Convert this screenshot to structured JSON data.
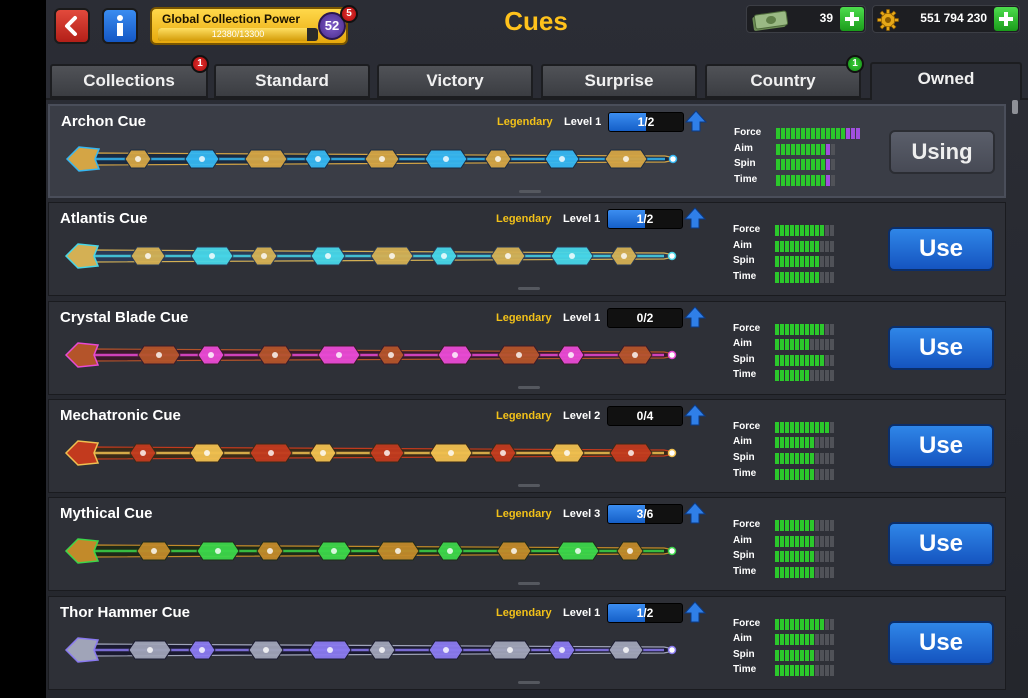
{
  "header": {
    "title": "Cues",
    "collection_power": {
      "title": "Global Collection Power",
      "progress_text": "12380/13300",
      "progress": 0.93,
      "level": "52",
      "badge": "5"
    },
    "cash": "39",
    "coins": "551 794 230",
    "back_icon": "back-arrow-icon",
    "info_icon": "info-icon"
  },
  "tabs": [
    {
      "label": "Collections",
      "badge": "1"
    },
    {
      "label": "Standard"
    },
    {
      "label": "Victory"
    },
    {
      "label": "Surprise"
    },
    {
      "label": "Country",
      "badge": "1"
    },
    {
      "label": "Owned",
      "active": true
    }
  ],
  "stat_labels": [
    "Force",
    "Aim",
    "Spin",
    "Time"
  ],
  "cues": [
    {
      "name": "Archon Cue",
      "rarity": "Legendary",
      "level": "Level 1",
      "progress": "1/2",
      "fill": 0.5,
      "stats": {
        "force": [
          14,
          3
        ],
        "aim": [
          10,
          1
        ],
        "spin": [
          10,
          1
        ],
        "time": [
          10,
          1
        ]
      },
      "button": "Using",
      "selected": true,
      "colors": [
        "#35b7f2",
        "#d4a545",
        "#1a2a40"
      ]
    },
    {
      "name": "Atlantis Cue",
      "rarity": "Legendary",
      "level": "Level 1",
      "progress": "1/2",
      "fill": 0.5,
      "stats": {
        "force": [
          10,
          0
        ],
        "aim": [
          9,
          0
        ],
        "spin": [
          9,
          0
        ],
        "time": [
          9,
          0
        ]
      },
      "button": "Use",
      "colors": [
        "#47d6e8",
        "#d4b054",
        "#2a3a55"
      ]
    },
    {
      "name": "Crystal Blade Cue",
      "rarity": "Legendary",
      "level": "Level 1",
      "progress": "0/2",
      "fill": 0,
      "stats": {
        "force": [
          10,
          0
        ],
        "aim": [
          7,
          0
        ],
        "spin": [
          10,
          0
        ],
        "time": [
          7,
          0
        ]
      },
      "button": "Use",
      "colors": [
        "#e94ad4",
        "#b4542a",
        "#3a1a2a"
      ]
    },
    {
      "name": "Mechatronic Cue",
      "rarity": "Legendary",
      "level": "Level 2",
      "progress": "0/4",
      "fill": 0,
      "stats": {
        "force": [
          11,
          0
        ],
        "aim": [
          8,
          0
        ],
        "spin": [
          8,
          0
        ],
        "time": [
          8,
          0
        ]
      },
      "button": "Use",
      "colors": [
        "#f0c050",
        "#c23a1e",
        "#3a2a18"
      ]
    },
    {
      "name": "Mythical Cue",
      "rarity": "Legendary",
      "level": "Level 3",
      "progress": "3/6",
      "fill": 0.5,
      "stats": {
        "force": [
          8,
          0
        ],
        "aim": [
          8,
          0
        ],
        "spin": [
          8,
          0
        ],
        "time": [
          8,
          0
        ]
      },
      "button": "Use",
      "colors": [
        "#3cd64a",
        "#c28a2a",
        "#1f2a18"
      ]
    },
    {
      "name": "Thor Hammer Cue",
      "rarity": "Legendary",
      "level": "Level 1",
      "progress": "1/2",
      "fill": 0.5,
      "stats": {
        "force": [
          10,
          0
        ],
        "aim": [
          8,
          0
        ],
        "spin": [
          8,
          0
        ],
        "time": [
          8,
          0
        ]
      },
      "button": "Use",
      "colors": [
        "#8a7af0",
        "#a0a4b8",
        "#1a1a30"
      ]
    }
  ]
}
